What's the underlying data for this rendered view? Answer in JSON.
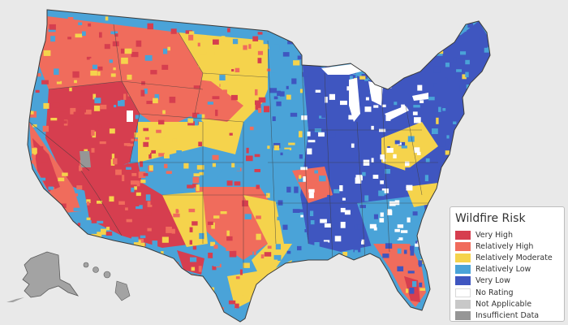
{
  "map": {
    "subject": "contiguous-us-county-wildfire-risk",
    "insets": [
      "alaska",
      "hawaii"
    ],
    "background_color": "#e9e9e9",
    "border_color": "#3a3a3a"
  },
  "legend": {
    "title": "Wildfire Risk",
    "items": [
      {
        "id": "very-high",
        "label": "Very High",
        "color": "#d63e4f"
      },
      {
        "id": "relatively-high",
        "label": "Relatively High",
        "color": "#f06c5c"
      },
      {
        "id": "relatively-moderate",
        "label": "Relatively Moderate",
        "color": "#f5d34c"
      },
      {
        "id": "relatively-low",
        "label": "Relatively Low",
        "color": "#4aa3d8"
      },
      {
        "id": "very-low",
        "label": "Very Low",
        "color": "#3f56c0"
      },
      {
        "id": "no-rating",
        "label": "No Rating",
        "color": "#ffffff"
      },
      {
        "id": "not-applicable",
        "label": "Not Applicable",
        "color": "#c8c8c8"
      },
      {
        "id": "insufficient-data",
        "label": "Insufficient Data",
        "color": "#969696"
      }
    ]
  }
}
